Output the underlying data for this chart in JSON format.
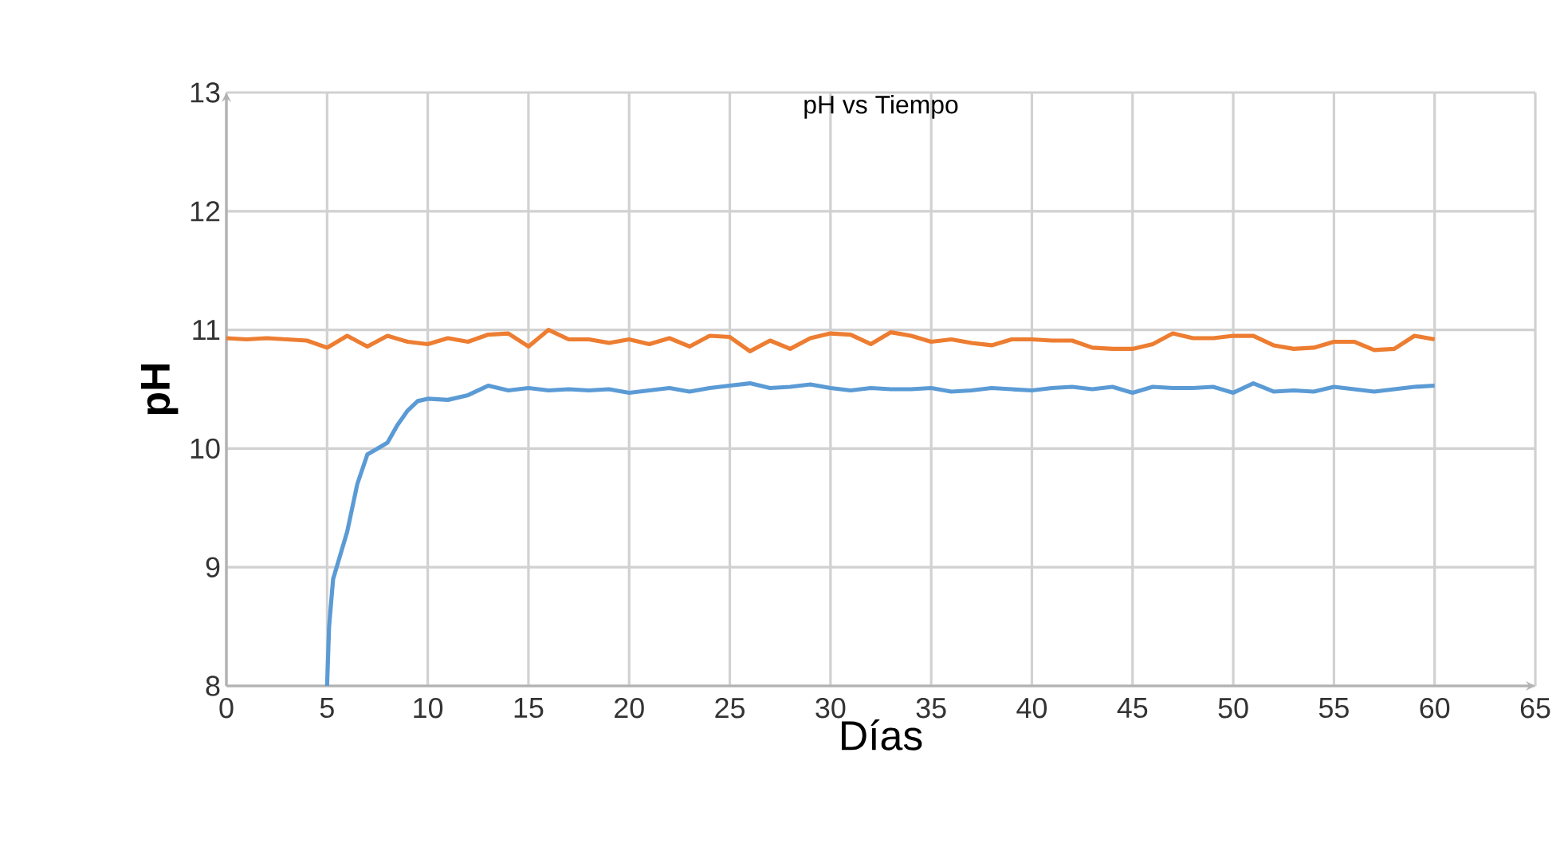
{
  "chart_data": {
    "type": "line",
    "title": "pH vs Tiempo",
    "xlabel": "Días",
    "ylabel": "pH",
    "xlim": [
      0,
      65
    ],
    "ylim": [
      8,
      13
    ],
    "xticks": [
      0,
      5,
      10,
      15,
      20,
      25,
      30,
      35,
      40,
      45,
      50,
      55,
      60,
      65
    ],
    "yticks": [
      8,
      9,
      10,
      11,
      12,
      13
    ],
    "grid": true,
    "series": [
      {
        "color": "#ed7d31",
        "x": [
          0,
          1,
          2,
          3,
          4,
          5,
          6,
          7,
          8,
          9,
          10,
          11,
          12,
          13,
          14,
          15,
          16,
          17,
          18,
          19,
          20,
          21,
          22,
          23,
          24,
          25,
          26,
          27,
          28,
          29,
          30,
          31,
          32,
          33,
          34,
          35,
          36,
          37,
          38,
          39,
          40,
          41,
          42,
          43,
          44,
          45,
          46,
          47,
          48,
          49,
          50,
          51,
          52,
          53,
          54,
          55,
          56,
          57,
          58,
          59,
          60
        ],
        "values": [
          10.93,
          10.92,
          10.93,
          10.92,
          10.91,
          10.85,
          10.95,
          10.86,
          10.95,
          10.9,
          10.88,
          10.93,
          10.9,
          10.96,
          10.97,
          10.86,
          11.0,
          10.92,
          10.92,
          10.89,
          10.92,
          10.88,
          10.93,
          10.86,
          10.95,
          10.94,
          10.82,
          10.91,
          10.84,
          10.93,
          10.97,
          10.96,
          10.88,
          10.98,
          10.95,
          10.9,
          10.92,
          10.89,
          10.87,
          10.92,
          10.92,
          10.91,
          10.91,
          10.85,
          10.84,
          10.84,
          10.88,
          10.97,
          10.93,
          10.93,
          10.95,
          10.95,
          10.87,
          10.84,
          10.85,
          10.9,
          10.9,
          10.83,
          10.84,
          10.95,
          10.92
        ]
      },
      {
        "color": "#5b9bd5",
        "x": [
          5,
          5.1,
          5.3,
          6,
          6.5,
          7,
          7.5,
          8,
          8.5,
          9,
          9.5,
          10,
          11,
          12,
          13,
          14,
          15,
          16,
          17,
          18,
          19,
          20,
          21,
          22,
          23,
          24,
          25,
          26,
          27,
          28,
          29,
          30,
          31,
          32,
          33,
          34,
          35,
          36,
          37,
          38,
          39,
          40,
          41,
          42,
          43,
          44,
          45,
          46,
          47,
          48,
          49,
          50,
          51,
          52,
          53,
          54,
          55,
          56,
          57,
          58,
          59,
          60
        ],
        "values": [
          8.0,
          8.5,
          8.9,
          9.3,
          9.7,
          9.95,
          10.0,
          10.05,
          10.2,
          10.32,
          10.4,
          10.42,
          10.41,
          10.45,
          10.53,
          10.49,
          10.51,
          10.49,
          10.5,
          10.49,
          10.5,
          10.47,
          10.49,
          10.51,
          10.48,
          10.51,
          10.53,
          10.55,
          10.51,
          10.52,
          10.54,
          10.51,
          10.49,
          10.51,
          10.5,
          10.5,
          10.51,
          10.48,
          10.49,
          10.51,
          10.5,
          10.49,
          10.51,
          10.52,
          10.5,
          10.52,
          10.47,
          10.52,
          10.51,
          10.51,
          10.52,
          10.47,
          10.55,
          10.48,
          10.49,
          10.48,
          10.52,
          10.5,
          10.48,
          10.5,
          10.52,
          10.53
        ]
      }
    ]
  }
}
